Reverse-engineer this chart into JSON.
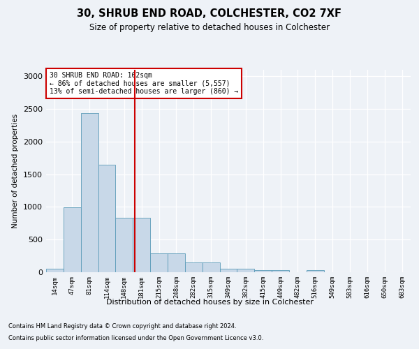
{
  "title": "30, SHRUB END ROAD, COLCHESTER, CO2 7XF",
  "subtitle": "Size of property relative to detached houses in Colchester",
  "xlabel": "Distribution of detached houses by size in Colchester",
  "ylabel": "Number of detached properties",
  "bin_labels": [
    "14sqm",
    "47sqm",
    "81sqm",
    "114sqm",
    "148sqm",
    "181sqm",
    "215sqm",
    "248sqm",
    "282sqm",
    "315sqm",
    "349sqm",
    "382sqm",
    "415sqm",
    "449sqm",
    "482sqm",
    "516sqm",
    "549sqm",
    "583sqm",
    "616sqm",
    "650sqm",
    "683sqm"
  ],
  "bar_heights": [
    50,
    990,
    2440,
    1650,
    830,
    830,
    290,
    290,
    150,
    150,
    50,
    50,
    30,
    30,
    0,
    30,
    0,
    0,
    0,
    0,
    0
  ],
  "bar_color": "#c8d8e8",
  "bar_edgecolor": "#5a9ab8",
  "vline_x": 4.62,
  "vline_color": "#cc0000",
  "ylim": [
    0,
    3100
  ],
  "annotation_text": "30 SHRUB END ROAD: 162sqm\n← 86% of detached houses are smaller (5,557)\n13% of semi-detached houses are larger (860) →",
  "annotation_box_color": "#ffffff",
  "annotation_box_edgecolor": "#cc0000",
  "footer_line1": "Contains HM Land Registry data © Crown copyright and database right 2024.",
  "footer_line2": "Contains public sector information licensed under the Open Government Licence v3.0.",
  "background_color": "#eef2f7",
  "plot_background_color": "#eef2f7",
  "title_fontsize": 10.5,
  "subtitle_fontsize": 8.5
}
